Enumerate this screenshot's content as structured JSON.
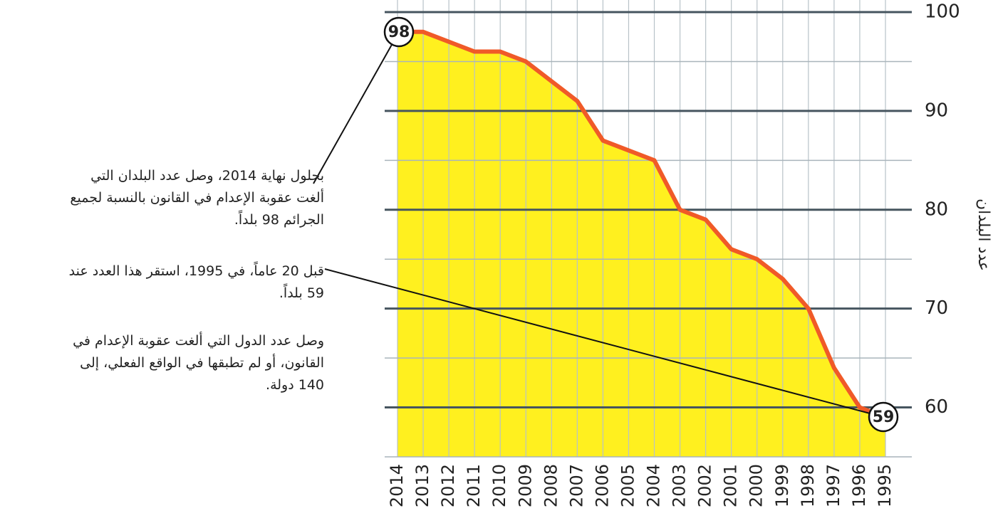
{
  "chart_data": {
    "type": "area",
    "y_axis_label": "عدد البلدان",
    "categories": [
      "2014",
      "2013",
      "2012",
      "2011",
      "2010",
      "2009",
      "2008",
      "2007",
      "2006",
      "2005",
      "2004",
      "2003",
      "2002",
      "2001",
      "2000",
      "1999",
      "1998",
      "1997",
      "1996",
      "1995"
    ],
    "series": [
      {
        "values": [
          98,
          98,
          97,
          96,
          96,
          95,
          93,
          91,
          87,
          86,
          85,
          80,
          79,
          76,
          75,
          73,
          70,
          64,
          60,
          59
        ],
        "color": "#f05a28",
        "fill": "#fff01f"
      }
    ],
    "ylim": [
      55,
      100
    ],
    "yticks": [
      60,
      70,
      80,
      90,
      100
    ],
    "grid": true,
    "annotations": [
      {
        "lines": [
          "بحلول نهاية 2014، وصل عدد البلدان التي",
          "ألغت عقوبة الإعدام في القانون بالنسبة لجميع",
          "الجرائم 98 بلداً."
        ]
      },
      {
        "lines": [
          "قبل 20 عاماً، في 1995، استقر هذا العدد عند",
          "59 بلداً."
        ]
      },
      {
        "lines": [
          "وصل عدد الدول التي ألغت عقوبة الإعدام في",
          "القانون، أو لم تطبقها في الواقع الفعلي، إلى",
          "140 دولة."
        ]
      }
    ]
  }
}
